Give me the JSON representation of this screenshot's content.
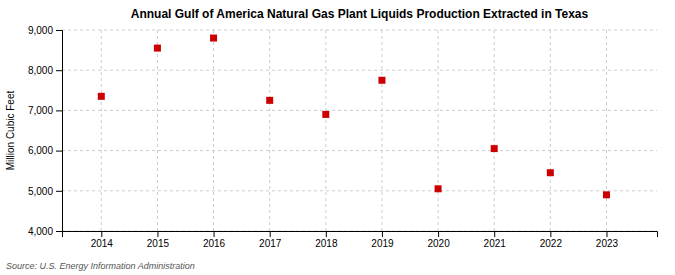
{
  "chart_data": {
    "type": "scatter",
    "title": "Annual Gulf of America Natural Gas Plant Liquids Production Extracted in Texas",
    "ylabel": "Million Cubic Feet",
    "annotations": [
      "Source: U.S. Energy Information Administration"
    ],
    "x": [
      2014,
      2015,
      2016,
      2017,
      2018,
      2019,
      2020,
      2021,
      2022,
      2023
    ],
    "values": [
      7350,
      8550,
      8800,
      7250,
      6900,
      7750,
      5050,
      6050,
      5450,
      4900
    ],
    "color": "#cc0000",
    "marker": "square",
    "xlim": [
      2013.3,
      2023.9
    ],
    "xticks": [
      2014,
      2015,
      2016,
      2017,
      2018,
      2019,
      2020,
      2021,
      2022,
      2023
    ],
    "ylim": [
      4000,
      9000
    ],
    "yticks": [
      {
        "value": 4000,
        "label": "4,000"
      },
      {
        "value": 5000,
        "label": "5,000"
      },
      {
        "value": 6000,
        "label": "6,000"
      },
      {
        "value": 7000,
        "label": "7,000"
      },
      {
        "value": 8000,
        "label": "8,000"
      },
      {
        "value": 9000,
        "label": "9,000"
      }
    ],
    "grid": true
  }
}
